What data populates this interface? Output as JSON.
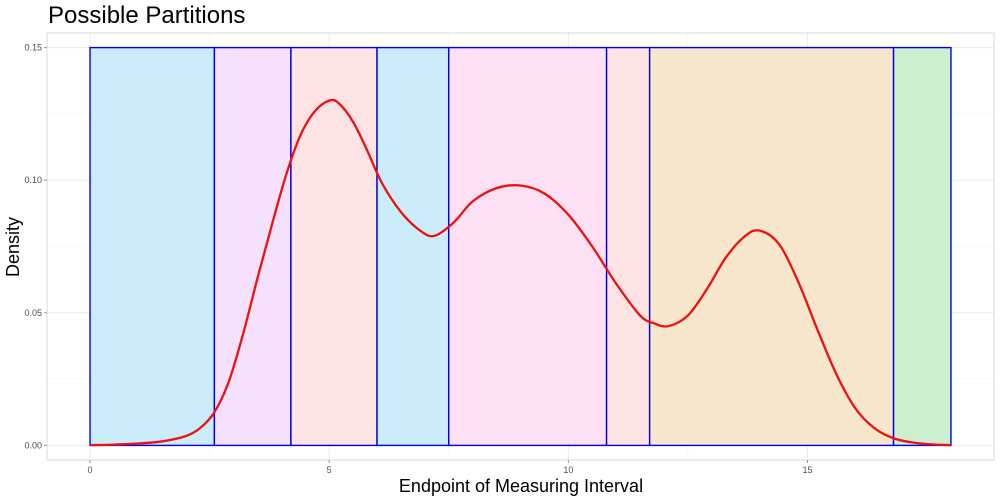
{
  "chart_data": {
    "type": "area",
    "title": "Possible Partitions",
    "xlabel": "Endpoint of Measuring Interval",
    "ylabel": "Density",
    "xlim": [
      -0.9,
      18.9
    ],
    "ylim": [
      -0.0055,
      0.1555
    ],
    "x_ticks": [
      0,
      5,
      10,
      15
    ],
    "x_tick_labels": [
      "0",
      "5",
      "10",
      "15"
    ],
    "y_ticks": [
      0.0,
      0.05,
      0.1,
      0.15
    ],
    "y_tick_labels": [
      "0.00",
      "0.05",
      "0.10",
      "0.15"
    ],
    "grid": true,
    "partitions": [
      {
        "xmin": 0.0,
        "xmax": 2.6,
        "ymax": 0.15,
        "fill": "#cbecfa"
      },
      {
        "xmin": 2.6,
        "xmax": 4.2,
        "ymax": 0.15,
        "fill": "#f6e1fc"
      },
      {
        "xmin": 4.2,
        "xmax": 6.0,
        "ymax": 0.15,
        "fill": "#fee3e4"
      },
      {
        "xmin": 6.0,
        "xmax": 7.5,
        "ymax": 0.15,
        "fill": "#cbecfa"
      },
      {
        "xmin": 7.5,
        "xmax": 10.8,
        "ymax": 0.15,
        "fill": "#fde0f4"
      },
      {
        "xmin": 10.8,
        "xmax": 11.7,
        "ymax": 0.15,
        "fill": "#fee3e4"
      },
      {
        "xmin": 11.7,
        "xmax": 16.8,
        "ymax": 0.15,
        "fill": "#f6e7cc"
      },
      {
        "xmin": 16.8,
        "xmax": 18.0,
        "ymax": 0.15,
        "fill": "#ccf0cf"
      }
    ],
    "partition_border_color": "#0000ee",
    "series": [
      {
        "color": "#ee1111",
        "x": [
          0.0,
          0.5,
          1.0,
          1.5,
          2.0,
          2.3,
          2.6,
          2.9,
          3.2,
          3.5,
          3.8,
          4.1,
          4.4,
          4.7,
          5.0,
          5.2,
          5.5,
          5.8,
          6.1,
          6.5,
          6.9,
          7.2,
          7.6,
          8.0,
          8.5,
          9.0,
          9.5,
          10.0,
          10.5,
          11.0,
          11.5,
          11.8,
          12.1,
          12.5,
          12.9,
          13.3,
          13.7,
          14.0,
          14.4,
          14.8,
          15.2,
          15.6,
          16.0,
          16.4,
          16.8,
          17.2,
          17.6,
          18.0
        ],
        "y": [
          0.0001,
          0.0003,
          0.0007,
          0.0015,
          0.0035,
          0.0065,
          0.0125,
          0.024,
          0.042,
          0.063,
          0.083,
          0.102,
          0.117,
          0.126,
          0.13,
          0.129,
          0.122,
          0.111,
          0.099,
          0.088,
          0.081,
          0.079,
          0.084,
          0.092,
          0.097,
          0.098,
          0.095,
          0.087,
          0.075,
          0.061,
          0.049,
          0.046,
          0.045,
          0.049,
          0.059,
          0.071,
          0.079,
          0.081,
          0.076,
          0.062,
          0.044,
          0.027,
          0.014,
          0.0065,
          0.0027,
          0.0011,
          0.0004,
          0.0001
        ]
      }
    ]
  }
}
